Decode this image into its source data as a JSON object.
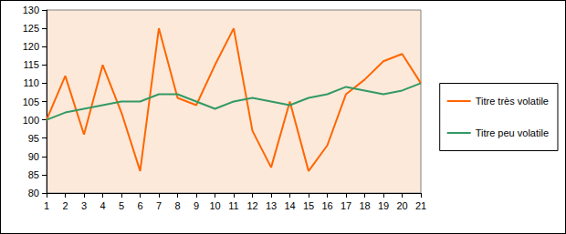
{
  "chart_data": {
    "type": "line",
    "categories": [
      1,
      2,
      3,
      4,
      5,
      6,
      7,
      8,
      9,
      10,
      11,
      12,
      13,
      14,
      15,
      16,
      17,
      18,
      19,
      20,
      21
    ],
    "series": [
      {
        "name": "Titre très volatile",
        "color": "#ff6600",
        "values": [
          100,
          112,
          96,
          115,
          102,
          86,
          125,
          106,
          104,
          115,
          125,
          97,
          87,
          105,
          86,
          93,
          107,
          111,
          116,
          118,
          110
        ]
      },
      {
        "name": "Titre peu volatile",
        "color": "#339966",
        "values": [
          100,
          102,
          103,
          104,
          105,
          105,
          107,
          107,
          105,
          103,
          105,
          106,
          105,
          104,
          106,
          107,
          109,
          108,
          107,
          108,
          110
        ]
      }
    ],
    "ylim": [
      80,
      130
    ],
    "yticks": [
      80,
      85,
      90,
      95,
      100,
      105,
      110,
      115,
      120,
      125,
      130
    ],
    "grid": false,
    "legend": "right"
  }
}
